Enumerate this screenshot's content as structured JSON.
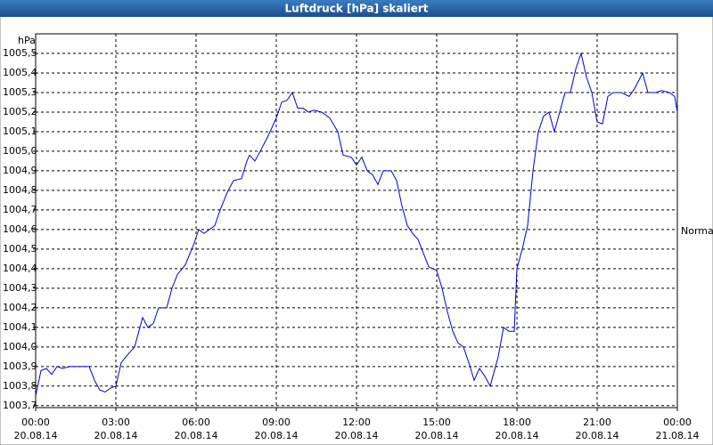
{
  "chart_data": {
    "type": "line",
    "title": "Luftdruck [hPa] skaliert",
    "y_unit": "hPa",
    "annotation": "Normal",
    "grid": true,
    "xlim": [
      0,
      24
    ],
    "ylim": [
      1003.69,
      1005.6
    ],
    "xticks": [
      {
        "value": 0,
        "label": "00:00"
      },
      {
        "value": 3,
        "label": "03:00"
      },
      {
        "value": 6,
        "label": "06:00"
      },
      {
        "value": 9,
        "label": "09:00"
      },
      {
        "value": 12,
        "label": "12:00"
      },
      {
        "value": 15,
        "label": "15:00"
      },
      {
        "value": 18,
        "label": "18:00"
      },
      {
        "value": 21,
        "label": "21:00"
      },
      {
        "value": 24,
        "label": "00:00"
      }
    ],
    "xtick_dates": [
      "20.08.14",
      "20.08.14",
      "20.08.14",
      "20.08.14",
      "20.08.14",
      "20.08.14",
      "20.08.14",
      "20.08.14",
      "21.08.14"
    ],
    "yticks": [
      {
        "value": 1003.7,
        "label": "1003,7"
      },
      {
        "value": 1003.8,
        "label": "1003,8"
      },
      {
        "value": 1003.9,
        "label": "1003,9"
      },
      {
        "value": 1004.0,
        "label": "1004,0"
      },
      {
        "value": 1004.1,
        "label": "1004,1"
      },
      {
        "value": 1004.2,
        "label": "1004,2"
      },
      {
        "value": 1004.3,
        "label": "1004,3"
      },
      {
        "value": 1004.4,
        "label": "1004,4"
      },
      {
        "value": 1004.5,
        "label": "1004,5"
      },
      {
        "value": 1004.6,
        "label": "1004,6"
      },
      {
        "value": 1004.7,
        "label": "1004,7"
      },
      {
        "value": 1004.8,
        "label": "1004,8"
      },
      {
        "value": 1004.9,
        "label": "1004,9"
      },
      {
        "value": 1005.0,
        "label": "1005,0"
      },
      {
        "value": 1005.1,
        "label": "1005,1"
      },
      {
        "value": 1005.2,
        "label": "1005,2"
      },
      {
        "value": 1005.3,
        "label": "1005,3"
      },
      {
        "value": 1005.4,
        "label": "1005,4"
      },
      {
        "value": 1005.5,
        "label": "1005,5"
      }
    ],
    "color": "#0000cc",
    "x": [
      0,
      0.2,
      0.4,
      0.6,
      0.8,
      1.0,
      1.3,
      1.7,
      2.0,
      2.2,
      2.4,
      2.6,
      2.8,
      3.0,
      3.2,
      3.5,
      3.7,
      3.9,
      4.0,
      4.2,
      4.4,
      4.6,
      4.9,
      5.1,
      5.3,
      5.6,
      5.9,
      6.1,
      6.3,
      6.5,
      6.7,
      6.9,
      7.2,
      7.4,
      7.7,
      7.9,
      8.0,
      8.2,
      8.4,
      8.7,
      9.0,
      9.2,
      9.4,
      9.6,
      9.8,
      10.0,
      10.2,
      10.4,
      10.7,
      11.0,
      11.3,
      11.5,
      11.8,
      12.0,
      12.2,
      12.4,
      12.6,
      12.8,
      13.0,
      13.3,
      13.5,
      13.7,
      13.9,
      14.1,
      14.3,
      14.5,
      14.7,
      15.0,
      15.2,
      15.4,
      15.6,
      15.8,
      16.0,
      16.2,
      16.4,
      16.6,
      16.8,
      17.0,
      17.3,
      17.5,
      17.7,
      17.9,
      18.0,
      18.2,
      18.4,
      18.6,
      18.8,
      19.0,
      19.2,
      19.4,
      19.6,
      19.8,
      20.0,
      20.2,
      20.4,
      20.6,
      20.8,
      21.0,
      21.2,
      21.4,
      21.6,
      21.9,
      22.2,
      22.4,
      22.7,
      22.9,
      23.2,
      23.4,
      23.7,
      23.9,
      24.0
    ],
    "values": [
      1003.75,
      1003.88,
      1003.89,
      1003.86,
      1003.9,
      1003.89,
      1003.9,
      1003.9,
      1003.9,
      1003.83,
      1003.78,
      1003.77,
      1003.79,
      1003.8,
      1003.92,
      1003.97,
      1004.0,
      1004.1,
      1004.15,
      1004.1,
      1004.12,
      1004.2,
      1004.2,
      1004.3,
      1004.37,
      1004.42,
      1004.52,
      1004.6,
      1004.58,
      1004.6,
      1004.62,
      1004.7,
      1004.8,
      1004.85,
      1004.86,
      1004.95,
      1004.98,
      1004.95,
      1005.0,
      1005.08,
      1005.17,
      1005.25,
      1005.26,
      1005.3,
      1005.22,
      1005.22,
      1005.2,
      1005.21,
      1005.2,
      1005.17,
      1005.1,
      1004.98,
      1004.97,
      1004.93,
      1004.97,
      1004.9,
      1004.88,
      1004.83,
      1004.9,
      1004.9,
      1004.85,
      1004.72,
      1004.62,
      1004.58,
      1004.55,
      1004.48,
      1004.41,
      1004.39,
      1004.3,
      1004.18,
      1004.08,
      1004.02,
      1004.0,
      1003.92,
      1003.83,
      1003.89,
      1003.85,
      1003.8,
      1003.95,
      1004.1,
      1004.08,
      1004.08,
      1004.4,
      1004.5,
      1004.62,
      1004.9,
      1005.1,
      1005.18,
      1005.2,
      1005.1,
      1005.2,
      1005.3,
      1005.3,
      1005.42,
      1005.5,
      1005.38,
      1005.3,
      1005.15,
      1005.14,
      1005.28,
      1005.3,
      1005.3,
      1005.28,
      1005.32,
      1005.4,
      1005.3,
      1005.3,
      1005.31,
      1005.3,
      1005.28,
      1005.2
    ]
  }
}
